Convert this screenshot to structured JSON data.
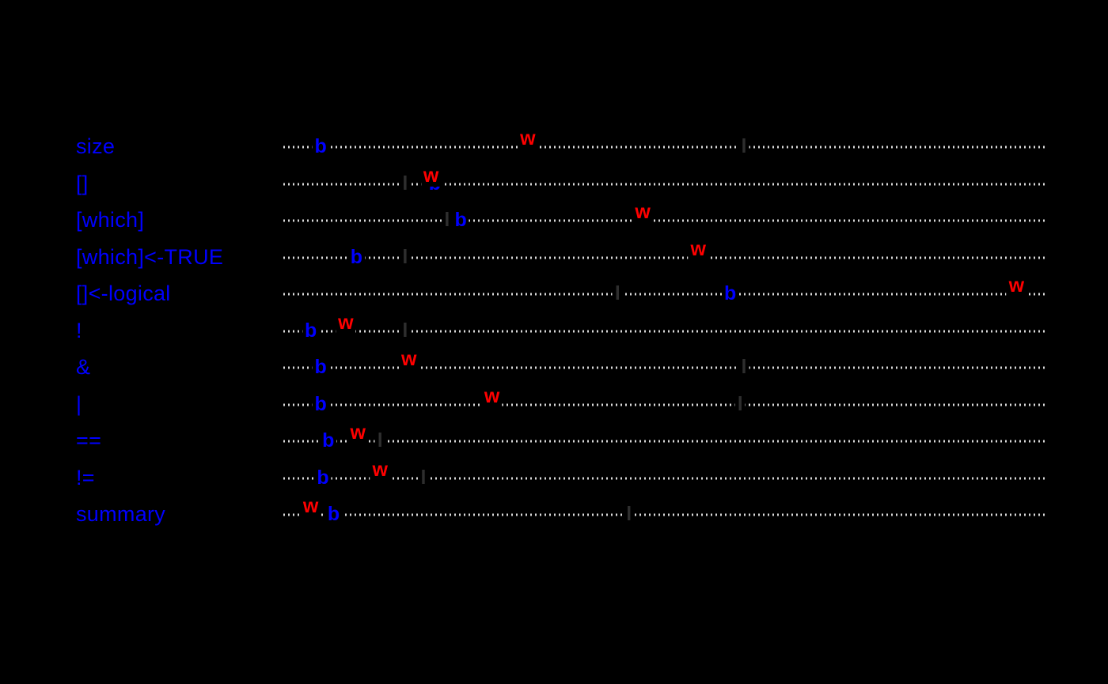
{
  "page": {
    "background_color": "#000000"
  },
  "chart_data": {
    "type": "scatter",
    "subtype": "dotchart-with-letter-markers",
    "categories": [
      "size",
      "[]",
      "[which]",
      "[which]<-TRUE",
      "[]<-logical",
      "!",
      "&",
      "|",
      "==",
      "!=",
      "summary"
    ],
    "category_label_color": "#0000FF",
    "grid": "dotted horizontal guide line per category row",
    "grid_color": "#d9d9d9",
    "axis_tick_labels_visible": false,
    "xlim": [
      0,
      1
    ],
    "x_unit": "fraction of plot width (no visible axis labels in image)",
    "legend_position": "none",
    "series": [
      {
        "name": "l",
        "color": "#2e2e2e",
        "values": [
          0.605,
          0.16,
          0.215,
          0.16,
          0.439,
          0.16,
          0.605,
          0.6,
          0.127,
          0.184,
          0.454
        ]
      },
      {
        "name": "b",
        "color": "#0000FF",
        "values": [
          0.049,
          0.199,
          0.233,
          0.096,
          0.587,
          0.036,
          0.049,
          0.049,
          0.059,
          0.052,
          0.066
        ]
      },
      {
        "name": "w",
        "color": "#FF0000",
        "values": [
          0.321,
          0.194,
          0.472,
          0.545,
          0.963,
          0.082,
          0.165,
          0.274,
          0.098,
          0.127,
          0.036
        ]
      }
    ]
  }
}
